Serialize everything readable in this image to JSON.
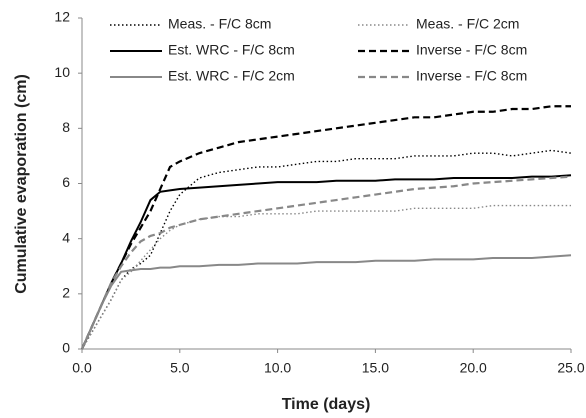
{
  "chart_data": {
    "type": "line",
    "x_label": "Time (days)",
    "y_label": "Cumulative evaporation (cm)",
    "x": [
      0,
      0.5,
      1,
      1.5,
      2,
      2.5,
      3,
      3.5,
      4,
      4.5,
      5,
      6,
      7,
      8,
      9,
      10,
      11,
      12,
      13,
      14,
      15,
      16,
      17,
      18,
      19,
      20,
      21,
      22,
      23,
      24,
      25
    ],
    "series": [
      {
        "name": "Meas. - F/C 8cm",
        "color": "#000000",
        "style": "dotted",
        "values": [
          0,
          0.6,
          1.2,
          1.8,
          2.5,
          2.9,
          3.1,
          3.4,
          4.2,
          5.0,
          5.6,
          6.2,
          6.4,
          6.5,
          6.6,
          6.6,
          6.7,
          6.8,
          6.8,
          6.9,
          6.9,
          6.9,
          7.0,
          7.0,
          7.0,
          7.1,
          7.1,
          7.0,
          7.1,
          7.2,
          7.1
        ]
      },
      {
        "name": "Meas. - F/C 2cm",
        "color": "#888888",
        "style": "dotted",
        "values": [
          0,
          0.6,
          1.2,
          1.8,
          2.5,
          2.8,
          3.2,
          3.6,
          4.0,
          4.3,
          4.5,
          4.7,
          4.8,
          4.8,
          4.9,
          4.9,
          4.9,
          5.0,
          5.0,
          5.0,
          5.0,
          5.0,
          5.1,
          5.1,
          5.1,
          5.1,
          5.2,
          5.2,
          5.2,
          5.2,
          5.2
        ]
      },
      {
        "name": "Est. WRC - F/C 8cm",
        "color": "#000000",
        "style": "solid",
        "values": [
          0,
          0.8,
          1.6,
          2.4,
          3.1,
          3.9,
          4.6,
          5.4,
          5.7,
          5.75,
          5.8,
          5.85,
          5.9,
          5.95,
          6.0,
          6.05,
          6.05,
          6.05,
          6.1,
          6.1,
          6.1,
          6.15,
          6.15,
          6.15,
          6.2,
          6.2,
          6.2,
          6.2,
          6.25,
          6.25,
          6.3
        ]
      },
      {
        "name": "Inverse - F/C 8cm",
        "color": "#000000",
        "style": "dashed",
        "values": [
          0,
          0.8,
          1.6,
          2.4,
          3.1,
          3.8,
          4.4,
          5.0,
          5.8,
          6.6,
          6.8,
          7.1,
          7.3,
          7.5,
          7.6,
          7.7,
          7.8,
          7.9,
          8.0,
          8.1,
          8.2,
          8.3,
          8.4,
          8.4,
          8.5,
          8.6,
          8.6,
          8.7,
          8.7,
          8.8,
          8.8
        ]
      },
      {
        "name": "Est. WRC - F/C 2cm",
        "color": "#888888",
        "style": "solid",
        "values": [
          0,
          0.8,
          1.6,
          2.3,
          2.8,
          2.85,
          2.9,
          2.9,
          2.95,
          2.95,
          3.0,
          3.0,
          3.05,
          3.05,
          3.1,
          3.1,
          3.1,
          3.15,
          3.15,
          3.15,
          3.2,
          3.2,
          3.2,
          3.25,
          3.25,
          3.25,
          3.3,
          3.3,
          3.3,
          3.35,
          3.4
        ]
      },
      {
        "name": "Inverse - F/C 8cm",
        "color": "#888888",
        "style": "dashed",
        "values": [
          0,
          0.8,
          1.6,
          2.4,
          3.0,
          3.5,
          3.9,
          4.1,
          4.2,
          4.4,
          4.5,
          4.7,
          4.8,
          4.9,
          5.0,
          5.1,
          5.2,
          5.3,
          5.4,
          5.5,
          5.6,
          5.7,
          5.8,
          5.85,
          5.9,
          6.0,
          6.05,
          6.1,
          6.15,
          6.2,
          6.25
        ]
      }
    ],
    "xlim": [
      0,
      25
    ],
    "xticks": [
      {
        "value": 0,
        "label": "0.0"
      },
      {
        "value": 5,
        "label": "5.0"
      },
      {
        "value": 10,
        "label": "10.0"
      },
      {
        "value": 15,
        "label": "15.0"
      },
      {
        "value": 20,
        "label": "20.0"
      },
      {
        "value": 25,
        "label": "25.0"
      }
    ],
    "ylim": [
      0,
      12
    ],
    "yticks": [
      0,
      2,
      4,
      6,
      8,
      10,
      12
    ],
    "grid": false,
    "legend": "top"
  }
}
